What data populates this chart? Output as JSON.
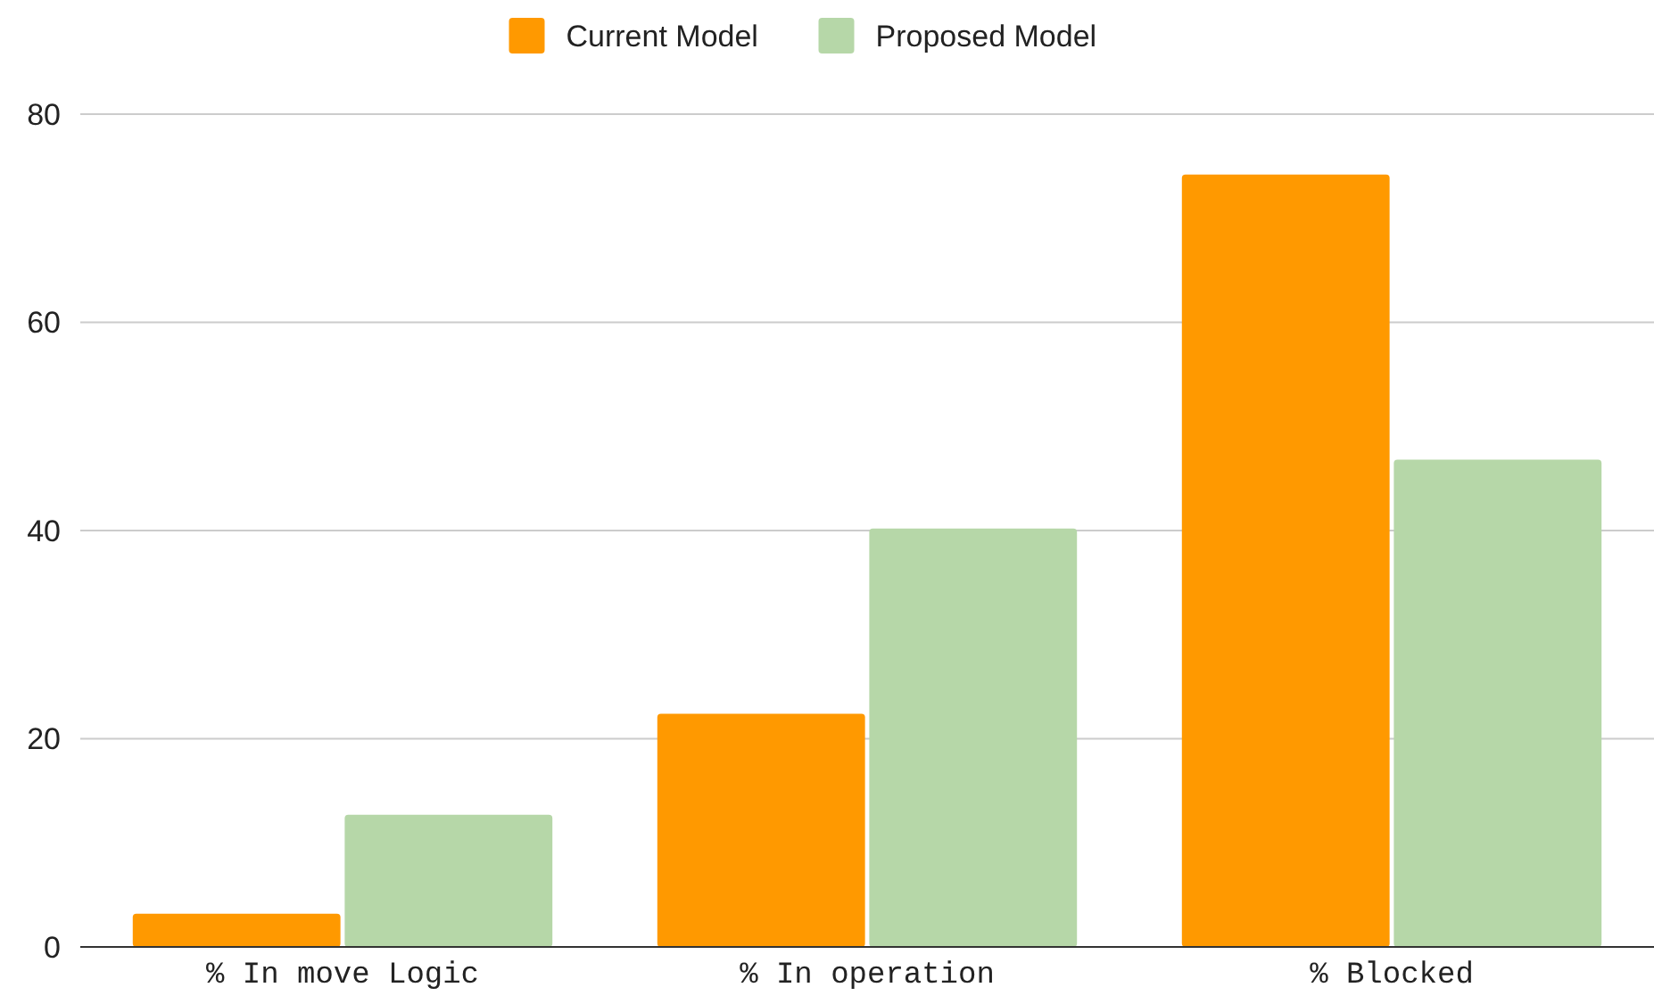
{
  "chart_data": {
    "type": "bar",
    "categories": [
      "% In move Logic",
      "% In operation",
      "% Blocked"
    ],
    "series": [
      {
        "name": "Current Model",
        "color": "#ff9900",
        "values": [
          3.2,
          22.4,
          74.2
        ]
      },
      {
        "name": "Proposed Model",
        "color": "#b6d7a8",
        "values": [
          12.7,
          40.2,
          46.8
        ]
      }
    ],
    "ylim": [
      0,
      80
    ],
    "yticks": [
      0,
      20,
      40,
      60,
      80
    ],
    "grid": "y",
    "legend": "top"
  }
}
